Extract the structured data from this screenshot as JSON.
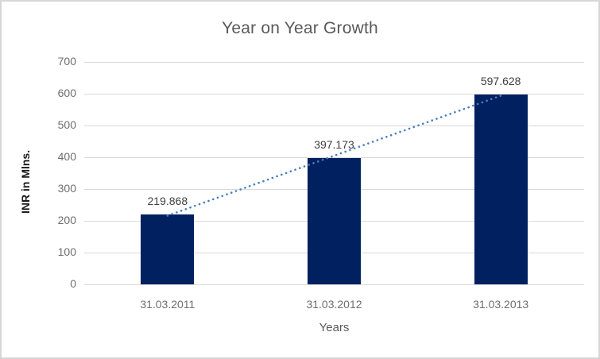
{
  "chart_data": {
    "type": "bar",
    "title": "Year on Year Growth",
    "categories": [
      "31.03.2011",
      "31.03.2012",
      "31.03.2013"
    ],
    "values": [
      219.868,
      397.173,
      597.628
    ],
    "data_labels": [
      "219.868",
      "397.173",
      "597.628"
    ],
    "xlabel": "Years",
    "ylabel": "INR in Mlns.",
    "ylim": [
      0,
      700
    ],
    "yticks": [
      0,
      100,
      200,
      300,
      400,
      500,
      600,
      700
    ],
    "grid": true,
    "legend": "none",
    "series_name": "INR in Mlns.",
    "trendline": {
      "type": "linear",
      "style": "dotted",
      "color": "#4a7ebb"
    },
    "colors": {
      "bar_fill": "#002060",
      "gridline": "#d9d9d9",
      "title_text": "#595959",
      "tick_text": "#6e6e6e",
      "data_label_text": "#404040",
      "y_axis_title_text": "#1a1a1a",
      "frame_border": "#d6d6d6",
      "background": "#ffffff"
    }
  }
}
